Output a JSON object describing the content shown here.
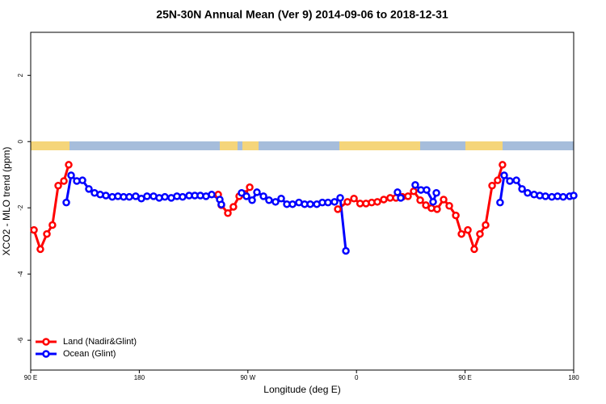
{
  "chart_data": {
    "type": "line",
    "title": "25N-30N Annual Mean (Ver 9)   2014-09-06 to 2018-12-31",
    "x_label": "Longitude (deg E)",
    "y_label": "XCO2 - MLO trend (ppm)",
    "xlim": [
      90,
      540
    ],
    "ylim": [
      -6.9,
      3.3
    ],
    "xticks": [
      {
        "value": 90,
        "label": "90 E"
      },
      {
        "value": 180,
        "label": "180"
      },
      {
        "value": 270,
        "label": "90 W"
      },
      {
        "value": 360,
        "label": "0"
      },
      {
        "value": 450,
        "label": "90 E"
      },
      {
        "value": 540,
        "label": "180"
      }
    ],
    "yticks": [
      -6,
      -4,
      -2,
      0,
      2
    ],
    "legend": "bottom-left",
    "series": [
      {
        "name": "Land (Nadir&Glint)",
        "color": "#ff0000",
        "x": [
          92.7,
          98,
          103.4,
          108,
          112.8,
          117.5,
          121.5,
          null,
          245.4,
          248,
          253.4,
          258,
          262.8,
          267.5,
          271.5,
          null,
          344.5,
          352.5,
          357.9,
          363,
          367.9,
          372.6,
          377.3,
          382.6,
          387.9,
          392.7,
          398,
          402.7,
          407.4,
          412.8,
          417.5,
          422.1,
          426.8,
          432.2,
          436.9,
          442.3,
          447,
          452.3,
          457.6,
          462.3,
          467,
          472.4,
          477,
          481
        ],
        "values": [
          -2.67,
          -3.25,
          -2.79,
          -2.52,
          -1.33,
          -1.19,
          -0.7,
          null,
          -1.6,
          -1.92,
          -2.16,
          -1.97,
          -1.65,
          -1.58,
          -1.38,
          null,
          -2.04,
          -1.82,
          -1.72,
          -1.87,
          -1.87,
          -1.84,
          -1.82,
          -1.75,
          -1.7,
          -1.7,
          -1.67,
          -1.65,
          -1.5,
          -1.77,
          -1.92,
          -2.01,
          -2.04,
          -1.75,
          -1.94,
          -2.23,
          -2.79,
          -2.67,
          -3.25,
          -2.79,
          -2.52,
          -1.33,
          -1.17,
          -0.7
        ]
      },
      {
        "name": "Ocean (Glint)",
        "color": "#0000ff",
        "x": [
          119.5,
          123.5,
          128.2,
          132.9,
          138.2,
          142.9,
          147.6,
          152.3,
          157.6,
          162.3,
          167,
          171.7,
          177,
          181.7,
          186.4,
          191.8,
          196.5,
          201.2,
          206.5,
          211.2,
          215.9,
          221.3,
          226,
          230.6,
          235.3,
          240,
          246.7,
          248,
          null,
          264.8,
          268.8,
          273.5,
          277.5,
          282.9,
          287.5,
          292.9,
          297.6,
          302.3,
          307,
          312.3,
          317,
          321.7,
          327.1,
          331.7,
          336.4,
          341.8,
          346.5,
          351.2,
          null,
          394,
          396.7,
          null,
          408.7,
          413.4,
          418.1,
          423.5,
          426.2,
          null,
          479,
          482.4,
          487.1,
          492.5,
          497.2,
          501.8,
          507.2,
          511.9,
          516.6,
          521.9,
          526.6,
          531.3,
          536.7,
          540
        ],
        "values": [
          -1.84,
          -1.02,
          -1.19,
          -1.17,
          -1.43,
          -1.55,
          -1.6,
          -1.63,
          -1.67,
          -1.65,
          -1.67,
          -1.67,
          -1.65,
          -1.72,
          -1.65,
          -1.65,
          -1.7,
          -1.67,
          -1.7,
          -1.65,
          -1.67,
          -1.63,
          -1.63,
          -1.63,
          -1.65,
          -1.6,
          -1.75,
          -1.9,
          null,
          -1.55,
          -1.65,
          -1.77,
          -1.53,
          -1.65,
          -1.77,
          -1.82,
          -1.72,
          -1.89,
          -1.89,
          -1.84,
          -1.89,
          -1.89,
          -1.89,
          -1.84,
          -1.84,
          -1.82,
          -1.7,
          -3.3,
          null,
          -1.53,
          -1.7,
          null,
          -1.31,
          -1.46,
          -1.46,
          -1.82,
          -1.55,
          null,
          -1.84,
          -1.02,
          -1.19,
          -1.17,
          -1.43,
          -1.55,
          -1.6,
          -1.63,
          -1.65,
          -1.67,
          -1.65,
          -1.67,
          -1.65,
          -1.63
        ]
      }
    ]
  }
}
